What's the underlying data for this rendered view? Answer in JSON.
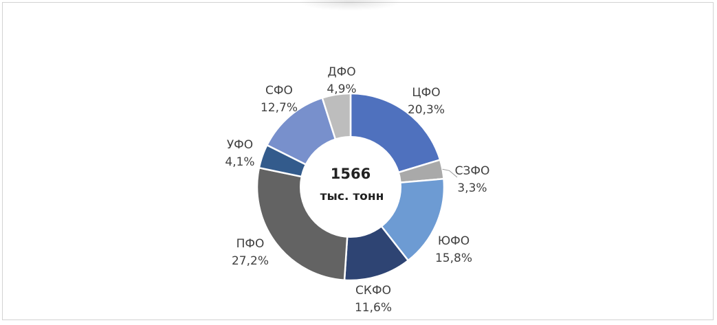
{
  "chart_data": {
    "type": "pie",
    "donut": true,
    "center_label": {
      "value": "1566",
      "unit": "тыс. тонн"
    },
    "slices": [
      {
        "label": "ЦФО",
        "value_label": "20,3%",
        "value": 20.3,
        "color": "#4f71be"
      },
      {
        "label": "СЗФО",
        "value_label": "3,3%",
        "value": 3.3,
        "color": "#a9a9a9"
      },
      {
        "label": "ЮФО",
        "value_label": "15,8%",
        "value": 15.8,
        "color": "#6d9bd3"
      },
      {
        "label": "СКФО",
        "value_label": "11,6%",
        "value": 11.6,
        "color": "#2e4473"
      },
      {
        "label": "ПФО",
        "value_label": "27,2%",
        "value": 27.2,
        "color": "#636363"
      },
      {
        "label": "УФО",
        "value_label": "4,1%",
        "value": 4.1,
        "color": "#335b8c"
      },
      {
        "label": "СФО",
        "value_label": "12,7%",
        "value": 12.7,
        "color": "#7890cc"
      },
      {
        "label": "ДФО",
        "value_label": "4,9%",
        "value": 4.9,
        "color": "#bdbdbd"
      }
    ]
  }
}
